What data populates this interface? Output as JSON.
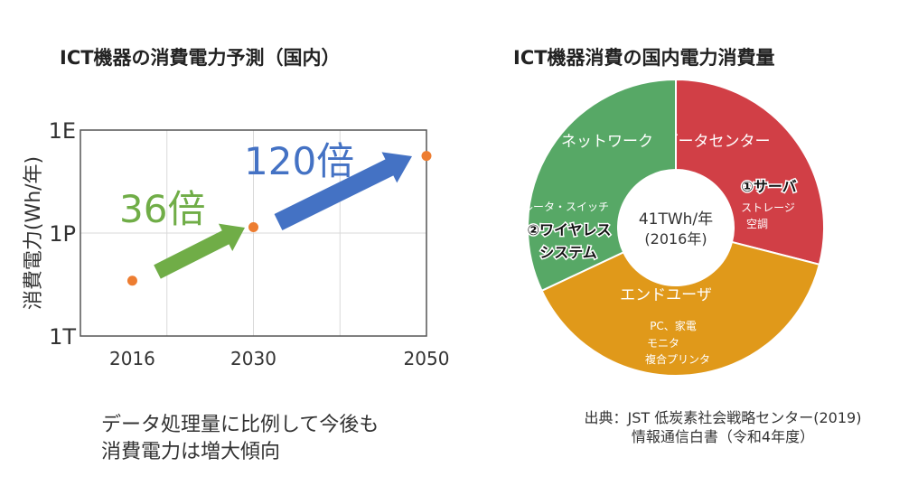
{
  "chart_data": [
    {
      "type": "scatter",
      "title": "ICT機器の消費電力予測（国内）",
      "xlabel": "",
      "ylabel": "消費電力(Wh/年)",
      "x": [
        2016,
        2030,
        2050
      ],
      "y": [
        41000000000000.0,
        1480000000000000.0,
        1.77e+17
      ],
      "xlim": [
        2010,
        2050
      ],
      "x_gridlines": [
        2020,
        2030,
        2040
      ],
      "x_ticks": [
        "2016",
        "2030",
        "2050"
      ],
      "y_scale": "log",
      "ylim": [
        1000000000000.0,
        1e+18
      ],
      "y_ticks": [
        "1T",
        "1P",
        "1E"
      ],
      "grid": true,
      "point_color": "#ed7d31",
      "annotations": [
        {
          "text": "36倍",
          "from": 2016,
          "to": 2030,
          "color": "#70ad47"
        },
        {
          "text": "120倍",
          "from": 2030,
          "to": 2050,
          "color": "#4472c4"
        }
      ]
    },
    {
      "type": "pie",
      "title": "ICT機器消費の国内電力消費量",
      "center_label": [
        "41TWh/年",
        "(2016年)"
      ],
      "slices": [
        {
          "name": "データセンター",
          "share": 29,
          "color": "#d13f46",
          "items": [
            "①サーバ",
            "ストレージ",
            "空調"
          ]
        },
        {
          "name": "エンドユーザ",
          "share": 39,
          "color": "#e0991a",
          "items": [
            "PC、家電",
            "モニタ",
            "複合プリンタ"
          ]
        },
        {
          "name": "ネットワーク",
          "share": 32,
          "color": "#57a866",
          "items": [
            "ルータ・スイッチ",
            "②ワイヤレス",
            "システム"
          ]
        }
      ]
    }
  ],
  "note": [
    "データ処理量に比例して今後も",
    "消費電力は増大傾向"
  ],
  "source": [
    "出典：JST 低炭素社会戦略センター(2019)",
    "情報通信白書（令和4年度）"
  ]
}
